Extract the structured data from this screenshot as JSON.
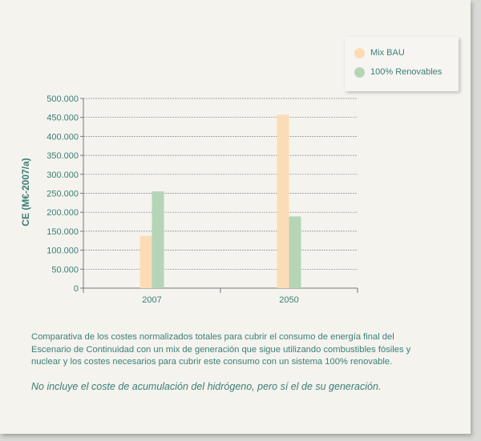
{
  "chart_data": {
    "type": "bar",
    "categories": [
      "2007",
      "2050"
    ],
    "series": [
      {
        "name": "Mix BAU",
        "values": [
          138000,
          457000
        ],
        "color": "#fcdcb6"
      },
      {
        "name": "100% Renovables",
        "values": [
          255000,
          189000
        ],
        "color": "#b5d5b6"
      }
    ],
    "ylabel": "CE (M€-2007/a)",
    "ylim": [
      0,
      500000
    ],
    "yticks": [
      {
        "value": 0,
        "label": "0"
      },
      {
        "value": 50000,
        "label": "50.000"
      },
      {
        "value": 100000,
        "label": "100.000"
      },
      {
        "value": 150000,
        "label": "150.000"
      },
      {
        "value": 200000,
        "label": "200.000"
      },
      {
        "value": 250000,
        "label": "250.000"
      },
      {
        "value": 300000,
        "label": "300.000"
      },
      {
        "value": 350000,
        "label": "350.000"
      },
      {
        "value": 400000,
        "label": "400.000"
      },
      {
        "value": 450000,
        "label": "450.000"
      },
      {
        "value": 500000,
        "label": "500.000"
      }
    ],
    "grid": true,
    "legend_position": "top-right"
  },
  "legend": {
    "items": [
      {
        "label": "Mix BAU",
        "color": "#fcdcb6"
      },
      {
        "label": "100% Renovables",
        "color": "#b5d5b6"
      }
    ]
  },
  "caption": "Comparativa de los costes normalizados totales para cubrir el consumo de energía final del Escenario de Continuidad con un mix de generación que sigue utilizando combustibles fósiles y nuclear y los costes necesarios para cubrir este consumo con un sistema 100% renovable.",
  "note": "No incluye el coste de acumulación del hidrógeno, pero sí el de su generación.",
  "colors": {
    "text": "#3c7e77",
    "axis": "#777777",
    "grid": "#8a8a8a",
    "background": "#f4f3ee"
  }
}
